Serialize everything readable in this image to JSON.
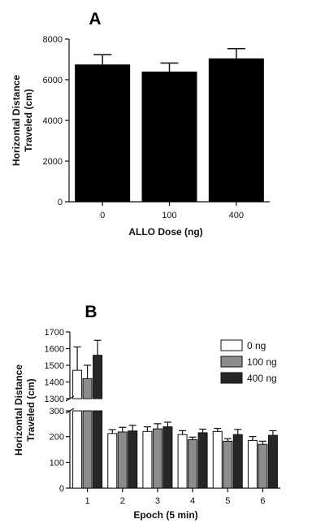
{
  "chart_data": [
    {
      "panel": "A",
      "type": "bar",
      "xlabel": "ALLO Dose (ng)",
      "ylabel": "Horizontal Distance Traveled (cm)",
      "categories": [
        "0",
        "100",
        "400"
      ],
      "values": [
        6750,
        6400,
        7050
      ],
      "errors": [
        480,
        420,
        480
      ],
      "ylim": [
        0,
        8000
      ],
      "yticks": [
        0,
        2000,
        4000,
        6000,
        8000
      ],
      "bar_color": "#000000",
      "grid": false
    },
    {
      "panel": "B",
      "type": "bar",
      "xlabel": "Epoch (5 min)",
      "ylabel": "Horizontal Distance Traveled (cm)",
      "categories": [
        "1",
        "2",
        "3",
        "4",
        "5",
        "6"
      ],
      "series": [
        {
          "name": "0 ng",
          "color": "#ffffff",
          "values": [
            1470,
            212,
            220,
            208,
            220,
            185
          ],
          "errors": [
            140,
            15,
            18,
            15,
            12,
            15
          ]
        },
        {
          "name": "100 ng",
          "color": "#8c8c8c",
          "values": [
            1420,
            218,
            230,
            188,
            182,
            170
          ],
          "errors": [
            80,
            18,
            20,
            10,
            10,
            12
          ]
        },
        {
          "name": "400 ng",
          "color": "#262626",
          "values": [
            1560,
            222,
            238,
            215,
            208,
            205
          ],
          "errors": [
            90,
            22,
            18,
            14,
            20,
            18
          ]
        }
      ],
      "y_axis_break": true,
      "ylim_lower": [
        0,
        300
      ],
      "yticks_lower": [
        0,
        100,
        200,
        300
      ],
      "ylim_upper": [
        1300,
        1700
      ],
      "yticks_upper": [
        1300,
        1400,
        1500,
        1600,
        1700
      ],
      "legend_position": "top-right",
      "grid": false
    }
  ]
}
